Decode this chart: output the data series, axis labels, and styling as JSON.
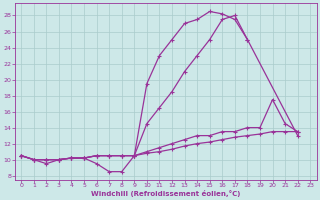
{
  "bg_color": "#cde8e8",
  "line_color": "#993399",
  "grid_color": "#aacccc",
  "xlabel": "Windchill (Refroidissement éolien,°C)",
  "xlim": [
    -0.5,
    23.5
  ],
  "ylim": [
    7.5,
    29.5
  ],
  "xticks": [
    0,
    1,
    2,
    3,
    4,
    5,
    6,
    7,
    8,
    9,
    10,
    11,
    12,
    13,
    14,
    15,
    16,
    17,
    18,
    19,
    20,
    21,
    22,
    23
  ],
  "yticks": [
    8,
    10,
    12,
    14,
    16,
    18,
    20,
    22,
    24,
    26,
    28
  ],
  "curve1_x": [
    0,
    1,
    2,
    3,
    4,
    5,
    6,
    7,
    8,
    9,
    10,
    11,
    12,
    13,
    14,
    15,
    16,
    17,
    18,
    22
  ],
  "curve1_y": [
    10.5,
    10.0,
    9.5,
    10.0,
    10.2,
    10.2,
    9.5,
    8.5,
    8.5,
    10.5,
    19.5,
    23.0,
    25.0,
    27.0,
    27.5,
    28.5,
    28.2,
    27.5,
    25.0,
    13.0
  ],
  "curve2_x": [
    0,
    1,
    2,
    3,
    4,
    5,
    6,
    7,
    8,
    9,
    10,
    11,
    12,
    13,
    14,
    15,
    16,
    17,
    18,
    19,
    20,
    21,
    22,
    23
  ],
  "curve2_y": [
    10.5,
    10.0,
    10.0,
    10.0,
    10.2,
    10.2,
    10.5,
    10.5,
    10.5,
    10.5,
    14.5,
    16.5,
    18.5,
    21.0,
    23.0,
    25.0,
    27.5,
    28.0,
    25.0,
    null,
    null,
    null,
    null,
    null
  ],
  "curve3_x": [
    0,
    1,
    2,
    3,
    4,
    5,
    6,
    7,
    8,
    9,
    10,
    11,
    12,
    13,
    14,
    15,
    16,
    17,
    18,
    19,
    20,
    21,
    22,
    23
  ],
  "curve3_y": [
    10.5,
    10.0,
    10.0,
    10.0,
    10.2,
    10.2,
    10.5,
    10.5,
    10.5,
    10.5,
    11.0,
    11.5,
    12.0,
    12.5,
    13.0,
    13.0,
    13.5,
    13.5,
    14.0,
    14.0,
    17.5,
    14.5,
    13.5,
    null
  ],
  "curve4_x": [
    0,
    1,
    2,
    3,
    4,
    5,
    6,
    7,
    8,
    9,
    10,
    11,
    12,
    13,
    14,
    15,
    16,
    17,
    18,
    19,
    20,
    21,
    22,
    23
  ],
  "curve4_y": [
    10.5,
    10.0,
    10.0,
    10.0,
    10.2,
    10.2,
    10.5,
    10.5,
    10.5,
    10.5,
    10.8,
    11.0,
    11.3,
    11.7,
    12.0,
    12.2,
    12.5,
    12.8,
    13.0,
    13.2,
    13.5,
    13.5,
    13.5,
    null
  ]
}
